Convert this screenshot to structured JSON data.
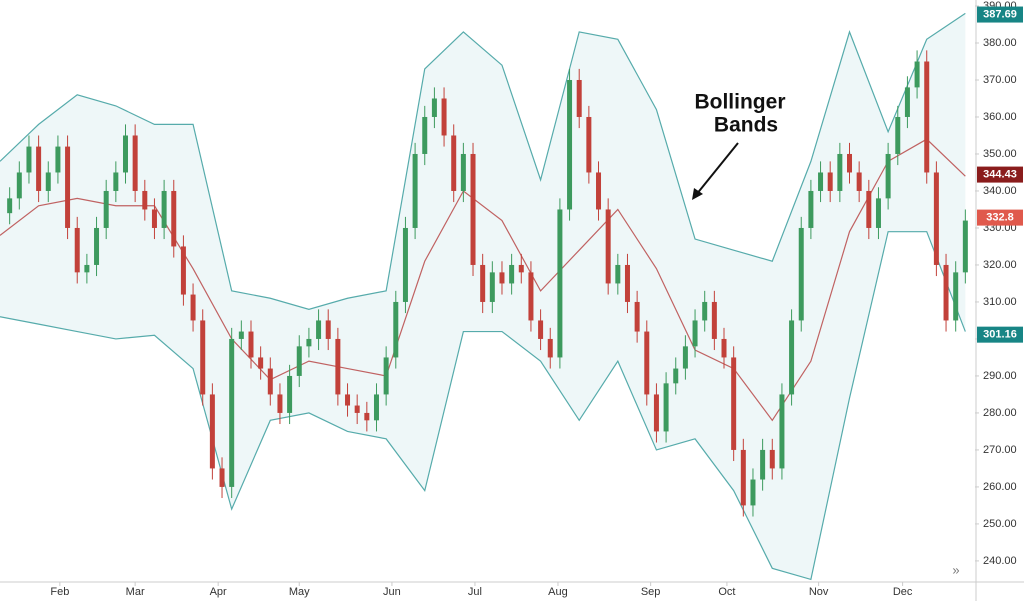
{
  "chart_data": {
    "type": "candlestick",
    "annotation": [
      "Bollinger",
      "Bands"
    ],
    "xlim": [
      0,
      101
    ],
    "xticks": [
      {
        "value": 6.2,
        "label": "Feb"
      },
      {
        "value": 14,
        "label": "Mar"
      },
      {
        "value": 22.6,
        "label": "Apr"
      },
      {
        "value": 31,
        "label": "May"
      },
      {
        "value": 40.6,
        "label": "Jun"
      },
      {
        "value": 49.2,
        "label": "Jul"
      },
      {
        "value": 57.8,
        "label": "Aug"
      },
      {
        "value": 67.4,
        "label": "Sep"
      },
      {
        "value": 75.3,
        "label": "Oct"
      },
      {
        "value": 84.8,
        "label": "Nov"
      },
      {
        "value": 93.5,
        "label": "Dec"
      }
    ],
    "ylim": [
      234.3,
      390
    ],
    "yticks": [
      {
        "value": 240,
        "label": "240.00"
      },
      {
        "value": 250,
        "label": "250.00"
      },
      {
        "value": 260,
        "label": "260.00"
      },
      {
        "value": 270,
        "label": "270.00"
      },
      {
        "value": 280,
        "label": "280.00"
      },
      {
        "value": 290,
        "label": "290.00"
      },
      {
        "value": 300,
        "label": "300.00"
      },
      {
        "value": 310,
        "label": "310.00"
      },
      {
        "value": 320,
        "label": "320.00"
      },
      {
        "value": 330,
        "label": "330.00"
      },
      {
        "value": 340,
        "label": "340.00"
      },
      {
        "value": 350,
        "label": "350.00"
      },
      {
        "value": 360,
        "label": "360.00"
      },
      {
        "value": 370,
        "label": "370.00"
      },
      {
        "value": 380,
        "label": "380.00"
      },
      {
        "value": 390,
        "label": "390.00"
      }
    ],
    "up_color": "#3d9a5e",
    "down_color": "#c2413a",
    "open": [
      334,
      338,
      345,
      352,
      340,
      345,
      352,
      330,
      318,
      320,
      330,
      340,
      345,
      355,
      340,
      335,
      330,
      340,
      325,
      312,
      305,
      285,
      265,
      260,
      300,
      302,
      295,
      292,
      285,
      280,
      290,
      298,
      300,
      305,
      300,
      285,
      282,
      280,
      278,
      285,
      295,
      310,
      330,
      350,
      360,
      365,
      355,
      340,
      350,
      320,
      310,
      318,
      315,
      320,
      318,
      305,
      300,
      295,
      335,
      370,
      360,
      345,
      335,
      315,
      320,
      310,
      302,
      285,
      275,
      288,
      292,
      298,
      305,
      310,
      300,
      295,
      270,
      255,
      262,
      270,
      265,
      285,
      305,
      330,
      340,
      345,
      340,
      350,
      345,
      340,
      330,
      338,
      350,
      360,
      368,
      375,
      345,
      320,
      305,
      318
    ],
    "high": [
      341,
      348,
      355,
      355,
      348,
      355,
      355,
      333,
      323,
      333,
      343,
      348,
      358,
      358,
      343,
      338,
      343,
      343,
      328,
      315,
      308,
      288,
      268,
      303,
      305,
      305,
      298,
      295,
      288,
      293,
      301,
      303,
      308,
      308,
      303,
      288,
      285,
      283,
      288,
      298,
      313,
      333,
      353,
      363,
      368,
      368,
      358,
      353,
      353,
      323,
      321,
      321,
      323,
      323,
      321,
      308,
      303,
      338,
      373,
      373,
      363,
      348,
      338,
      323,
      323,
      313,
      305,
      288,
      291,
      295,
      301,
      308,
      313,
      313,
      303,
      298,
      273,
      265,
      273,
      273,
      288,
      308,
      333,
      343,
      348,
      348,
      353,
      353,
      348,
      343,
      341,
      353,
      363,
      371,
      378,
      378,
      348,
      323,
      321,
      335
    ],
    "low": [
      331,
      335,
      342,
      337,
      337,
      342,
      327,
      315,
      315,
      317,
      327,
      337,
      342,
      337,
      332,
      327,
      327,
      322,
      309,
      302,
      282,
      262,
      257,
      257,
      297,
      292,
      289,
      282,
      277,
      277,
      287,
      295,
      297,
      297,
      282,
      279,
      277,
      275,
      275,
      282,
      292,
      307,
      327,
      347,
      357,
      352,
      337,
      337,
      317,
      307,
      307,
      312,
      312,
      315,
      302,
      297,
      292,
      292,
      332,
      357,
      342,
      332,
      312,
      312,
      307,
      299,
      282,
      272,
      272,
      285,
      289,
      295,
      302,
      297,
      292,
      267,
      252,
      252,
      259,
      262,
      262,
      282,
      302,
      327,
      337,
      337,
      337,
      342,
      337,
      327,
      327,
      335,
      347,
      357,
      365,
      342,
      317,
      302,
      302,
      315
    ],
    "close": [
      338,
      345,
      352,
      340,
      345,
      352,
      330,
      318,
      320,
      330,
      340,
      345,
      355,
      340,
      335,
      330,
      340,
      325,
      312,
      305,
      285,
      265,
      260,
      300,
      302,
      295,
      292,
      285,
      280,
      290,
      298,
      300,
      305,
      300,
      285,
      282,
      280,
      278,
      285,
      295,
      310,
      330,
      350,
      360,
      365,
      355,
      340,
      350,
      320,
      310,
      318,
      315,
      320,
      318,
      305,
      300,
      295,
      335,
      370,
      360,
      345,
      335,
      315,
      320,
      310,
      302,
      285,
      275,
      288,
      292,
      298,
      305,
      310,
      300,
      295,
      270,
      255,
      262,
      270,
      265,
      285,
      305,
      330,
      340,
      345,
      340,
      350,
      345,
      340,
      330,
      338,
      350,
      360,
      368,
      375,
      345,
      320,
      305,
      318,
      332
    ],
    "bands": {
      "x": [
        0,
        4,
        8,
        12,
        16,
        20,
        24,
        28,
        32,
        36,
        40,
        44,
        48,
        52,
        56,
        60,
        64,
        68,
        72,
        76,
        80,
        84,
        88,
        92,
        96,
        100
      ],
      "fill": "#eef7f8",
      "series": [
        {
          "color": "#56abab",
          "values": [
            348,
            358,
            366,
            363,
            358,
            358,
            313,
            311,
            308,
            311,
            313,
            373,
            383,
            374,
            343,
            383,
            381,
            362,
            327,
            324,
            321,
            348,
            383,
            356,
            381,
            388
          ]
        },
        {
          "color": "#c06262",
          "values": [
            328,
            336,
            338,
            336,
            336,
            319,
            300,
            289,
            294,
            292,
            290,
            321,
            340,
            332,
            313,
            324,
            335,
            319,
            297,
            292,
            278,
            294,
            329,
            348,
            354,
            344
          ]
        },
        {
          "color": "#56abab",
          "values": [
            306,
            304,
            302,
            300,
            301,
            292,
            254,
            278,
            280,
            275,
            273,
            259,
            302,
            302,
            294,
            278,
            294,
            270,
            273,
            259,
            238,
            235,
            284,
            329,
            329,
            302
          ]
        }
      ]
    },
    "price_labels": [
      {
        "value": 387.69,
        "color": "#178585"
      },
      {
        "value": 344.43,
        "color": "#8a1c1c"
      },
      {
        "value": 332.8,
        "color": "#e0594c"
      },
      {
        "value": 301.16,
        "color": "#178585"
      }
    ]
  }
}
